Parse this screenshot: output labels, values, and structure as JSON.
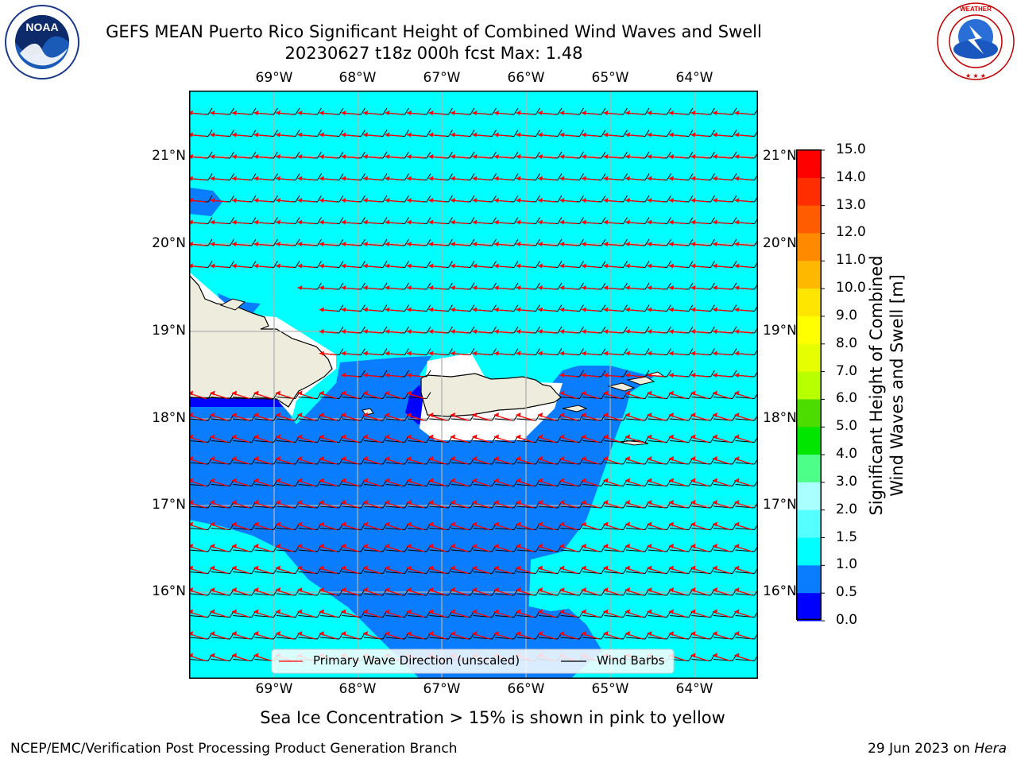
{
  "header": {
    "title_line1": "GEFS MEAN Puerto Rico Significant Height of Combined Wind Waves and Swell",
    "title_line2": "20230627 t18z 000h fcst   Max: 1.48"
  },
  "logos": {
    "noaa": "NOAA",
    "noaa_ring": "NATIONAL OCEANIC AND ATMOSPHERIC ADMINISTRATION · U.S. DEPARTMENT OF COMMERCE",
    "nws_ring": "NATIONAL WEATHER SERVICE"
  },
  "map": {
    "lon_labels": [
      "69°W",
      "68°W",
      "67°W",
      "66°W",
      "65°W",
      "64°W"
    ],
    "lat_labels": [
      "21°N",
      "20°N",
      "19°N",
      "18°N",
      "17°N",
      "16°N"
    ],
    "legend": {
      "wave_dir": "Primary Wave Direction (unscaled)",
      "wind_barbs": "Wind Barbs"
    },
    "colors": {
      "ocean_main": "#00ffff",
      "band_0_5_1": "#0a7dff",
      "band_0_0_5": "#0000ff",
      "land": "#eeecdc",
      "arrows": "#ff0000",
      "barbs": "#000000"
    }
  },
  "colorbar": {
    "label_line1": "Significant Height of Combined",
    "label_line2": "Wind Waves and Swell [m]",
    "ticks": [
      "15.0",
      "14.0",
      "13.0",
      "12.0",
      "11.0",
      "10.0",
      "9.0",
      "8.0",
      "7.0",
      "6.0",
      "5.0",
      "4.0",
      "3.0",
      "2.0",
      "1.5",
      "1.0",
      "0.5",
      "0.0"
    ],
    "colors": [
      "#ff0000",
      "#ff2e00",
      "#ff5c00",
      "#ff8a00",
      "#ffb800",
      "#ffe600",
      "#ffff00",
      "#e6ff00",
      "#b8ff00",
      "#4ddc00",
      "#00e600",
      "#4dff88",
      "#aaffff",
      "#55ffff",
      "#00ffff",
      "#0a7dff",
      "#0000ff"
    ]
  },
  "notes": {
    "sea_ice": "Sea Ice Concentration > 15% is shown in pink to yellow"
  },
  "footer": {
    "left": "NCEP/EMC/Verification Post Processing Product Generation Branch",
    "right_prefix": "29 Jun 2023 on ",
    "right_host": "Hera"
  }
}
